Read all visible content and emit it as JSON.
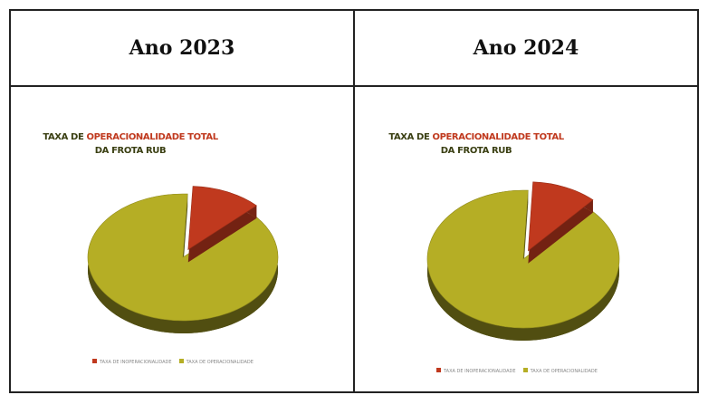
{
  "headers": [
    "Ano 2023",
    "Ano 2024"
  ],
  "chart_data": [
    {
      "type": "pie",
      "title_part1": "TAXA DE",
      "title_part2": "OPERACIONALIDADE TOTAL",
      "title_line2": "DA FROTA RUB",
      "slices": [
        {
          "label": "TAXA DE INOPERACIONALIDADE",
          "value": 12,
          "color": "#c0391e"
        },
        {
          "label": "TAXA DE OPERACIONALIDADE",
          "value": 88,
          "color": "#b5ae25"
        }
      ],
      "legend_placement": "bottom"
    },
    {
      "type": "pie",
      "title_part1": "TAXA DE",
      "title_part2": "OPERACIONALIDADE TOTAL",
      "title_line2": "DA FROTA RUB",
      "slices": [
        {
          "label": "TAXA DE INOPERACIONALIDADE",
          "value": 11,
          "color": "#c0391e"
        },
        {
          "label": "TAXA DE OPERACIONALIDADE",
          "value": 89,
          "color": "#b5ae25"
        }
      ],
      "legend_placement": "bottom"
    }
  ]
}
